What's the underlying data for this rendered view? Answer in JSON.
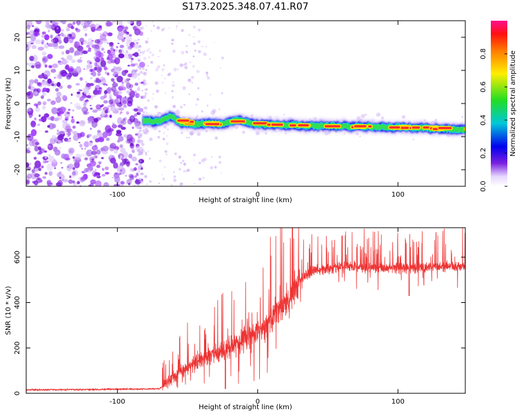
{
  "page": {
    "title": "S173.2025.348.07.41.R07"
  },
  "colors": {
    "background": "#ffffff",
    "snr_line": "#ee3333",
    "ridge_core": "#ff2a2a",
    "ridge_mid": "#33dd55",
    "ridge_edge": "#2233ee",
    "noise": "#8a2be2"
  },
  "chart_data": [
    {
      "type": "heatmap",
      "name": "spectrogram",
      "xlabel": "Height of straight line (km)",
      "ylabel": "Frequency (Hz)",
      "xlim": [
        -165,
        148
      ],
      "ylim": [
        -25,
        25
      ],
      "xticks": [
        -100,
        0,
        100
      ],
      "yticks": [
        -20,
        -10,
        0,
        10,
        20
      ],
      "noise_region_x": [
        -165,
        -82
      ],
      "ridge": {
        "x_start": -82,
        "x_end": 148,
        "centerline": [
          {
            "x": -82,
            "y": -5.2
          },
          {
            "x": -70,
            "y": -5.5
          },
          {
            "x": -62,
            "y": -3.8
          },
          {
            "x": -55,
            "y": -5.8
          },
          {
            "x": -45,
            "y": -6.3
          },
          {
            "x": -35,
            "y": -6.0
          },
          {
            "x": -25,
            "y": -6.2
          },
          {
            "x": -15,
            "y": -5.0
          },
          {
            "x": -8,
            "y": -5.6
          },
          {
            "x": 0,
            "y": -6.2
          },
          {
            "x": 20,
            "y": -6.6
          },
          {
            "x": 40,
            "y": -6.7
          },
          {
            "x": 60,
            "y": -6.9
          },
          {
            "x": 80,
            "y": -7.0
          },
          {
            "x": 100,
            "y": -7.2
          },
          {
            "x": 120,
            "y": -7.4
          },
          {
            "x": 148,
            "y": -7.9
          }
        ]
      },
      "colorbar": {
        "label": "Normalized spectral amplitude",
        "range": [
          0,
          1
        ],
        "ticks": [
          "0.0",
          "0.2",
          "0.4",
          "0.6",
          "0.8"
        ],
        "tick_values": [
          0,
          0.2,
          0.4,
          0.6,
          0.8
        ]
      }
    },
    {
      "type": "line",
      "name": "snr",
      "xlabel": "Height of straight line (km)",
      "ylabel": "SNR (10 * v/v)",
      "xlim": [
        -165,
        148
      ],
      "ylim": [
        0,
        730
      ],
      "xticks": [
        -100,
        0,
        100
      ],
      "yticks": [
        0,
        200,
        400,
        600
      ],
      "series": [
        {
          "name": "SNR",
          "envelope": [
            {
              "x": -165,
              "y": 15
            },
            {
              "x": -100,
              "y": 18
            },
            {
              "x": -70,
              "y": 20
            },
            {
              "x": -60,
              "y": 70
            },
            {
              "x": -50,
              "y": 120
            },
            {
              "x": -40,
              "y": 150
            },
            {
              "x": -20,
              "y": 200
            },
            {
              "x": 0,
              "y": 270
            },
            {
              "x": 20,
              "y": 400
            },
            {
              "x": 30,
              "y": 500
            },
            {
              "x": 40,
              "y": 540
            },
            {
              "x": 60,
              "y": 560
            },
            {
              "x": 80,
              "y": 555
            },
            {
              "x": 100,
              "y": 550
            },
            {
              "x": 120,
              "y": 555
            },
            {
              "x": 148,
              "y": 560
            }
          ],
          "peak_max": 730,
          "notable_dips": [
            {
              "x": -23,
              "y": 20
            },
            {
              "x": 108,
              "y": 430
            }
          ]
        }
      ]
    }
  ]
}
